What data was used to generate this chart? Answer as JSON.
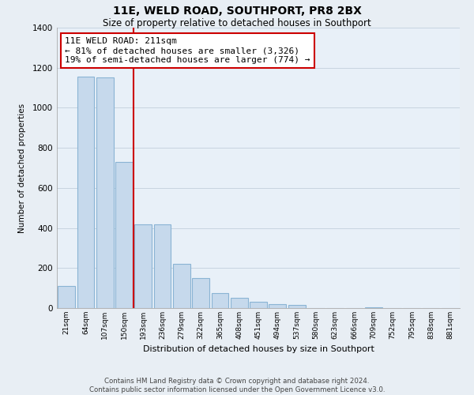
{
  "title": "11E, WELD ROAD, SOUTHPORT, PR8 2BX",
  "subtitle": "Size of property relative to detached houses in Southport",
  "xlabel": "Distribution of detached houses by size in Southport",
  "ylabel": "Number of detached properties",
  "categories": [
    "21sqm",
    "64sqm",
    "107sqm",
    "150sqm",
    "193sqm",
    "236sqm",
    "279sqm",
    "322sqm",
    "365sqm",
    "408sqm",
    "451sqm",
    "494sqm",
    "537sqm",
    "580sqm",
    "623sqm",
    "666sqm",
    "709sqm",
    "752sqm",
    "795sqm",
    "838sqm",
    "881sqm"
  ],
  "values": [
    110,
    1155,
    1150,
    730,
    420,
    420,
    220,
    150,
    75,
    50,
    30,
    20,
    15,
    0,
    0,
    0,
    5,
    0,
    0,
    0,
    0
  ],
  "bar_color": "#c6d9ec",
  "bar_edge_color": "#8ab4d4",
  "annotation_line_color": "#cc0000",
  "annotation_box_edge_color": "#cc0000",
  "annotation_box_text": "11E WELD ROAD: 211sqm\n← 81% of detached houses are smaller (3,326)\n19% of semi-detached houses are larger (774) →",
  "red_line_x": 3.5,
  "ylim": [
    0,
    1400
  ],
  "yticks": [
    0,
    200,
    400,
    600,
    800,
    1000,
    1200,
    1400
  ],
  "footer_line1": "Contains HM Land Registry data © Crown copyright and database right 2024.",
  "footer_line2": "Contains public sector information licensed under the Open Government Licence v3.0.",
  "bg_color": "#e8eef4",
  "plot_bg_color": "#e8f0f8",
  "grid_color": "#c8d4e0",
  "title_fontsize": 10,
  "subtitle_fontsize": 8.5
}
